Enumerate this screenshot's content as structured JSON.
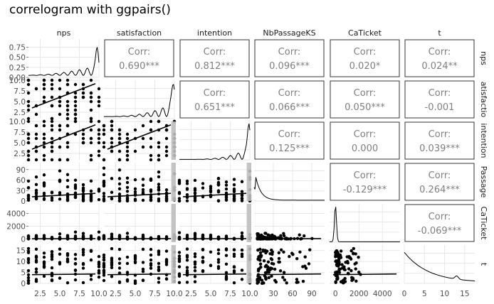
{
  "chart_data": {
    "type": "scatter",
    "title": "correlogram with ggpairs()",
    "variables": [
      "nps",
      "satisfaction",
      "intention",
      "NbPassageKS",
      "CaTicket",
      "t"
    ],
    "strip_labels_right": [
      "nps",
      "atisfactio",
      "intention",
      "Passage",
      "CaTicket",
      "t"
    ],
    "corr_label": "Corr:",
    "correlations": [
      {
        "row": 0,
        "col": 1,
        "value": "0.690***"
      },
      {
        "row": 0,
        "col": 2,
        "value": "0.812***"
      },
      {
        "row": 0,
        "col": 3,
        "value": "0.096***"
      },
      {
        "row": 0,
        "col": 4,
        "value": "0.020*"
      },
      {
        "row": 0,
        "col": 5,
        "value": "0.024**"
      },
      {
        "row": 1,
        "col": 2,
        "value": "0.651***"
      },
      {
        "row": 1,
        "col": 3,
        "value": "0.066***"
      },
      {
        "row": 1,
        "col": 4,
        "value": "0.050***"
      },
      {
        "row": 1,
        "col": 5,
        "value": "-0.001"
      },
      {
        "row": 2,
        "col": 3,
        "value": "0.125***"
      },
      {
        "row": 2,
        "col": 4,
        "value": "0.000"
      },
      {
        "row": 2,
        "col": 5,
        "value": "0.039***"
      },
      {
        "row": 3,
        "col": 4,
        "value": "-0.129***"
      },
      {
        "row": 3,
        "col": 5,
        "value": "0.264***"
      },
      {
        "row": 4,
        "col": 5,
        "value": "-0.069***"
      }
    ],
    "x_ticks": [
      [
        "2.5",
        "5.0",
        "7.5",
        "10.0"
      ],
      [
        "2.5",
        "5.0",
        "7.5",
        "10.0"
      ],
      [
        "2.5",
        "5.0",
        "7.5",
        "10.0"
      ],
      [
        "30",
        "60",
        "90"
      ],
      [
        "0",
        "2000",
        "4000"
      ],
      [
        "0",
        "5",
        "10",
        "15"
      ]
    ],
    "y_ticks": [
      [
        "0.00",
        "0.25",
        "0.50",
        "0.75"
      ],
      [
        "2.5",
        "5.0",
        "7.5",
        "10.0"
      ],
      [
        "2.5",
        "5.0",
        "7.5",
        "10.0"
      ],
      [
        "0",
        "30",
        "60",
        "90"
      ],
      [
        "0",
        "2000",
        "4000"
      ],
      [
        "0",
        "5",
        "10",
        "15"
      ]
    ],
    "density_y_ticks": [
      "0.00",
      "0.25",
      "0.50",
      "0.75"
    ],
    "ranges": [
      [
        1,
        10
      ],
      [
        1,
        10
      ],
      [
        1,
        10
      ],
      [
        0,
        110
      ],
      [
        -500,
        5500
      ],
      [
        0,
        17.5
      ]
    ],
    "density_ylim": [
      0,
      0.95
    ],
    "grid": true,
    "colors": {
      "points": "#000000",
      "panel_border": "#333333",
      "grid_major": "#e6e6e6",
      "grid_minor": "#f3f3f3",
      "corr_text": "#7f7f7f",
      "ribbon": "#bebebe"
    }
  }
}
